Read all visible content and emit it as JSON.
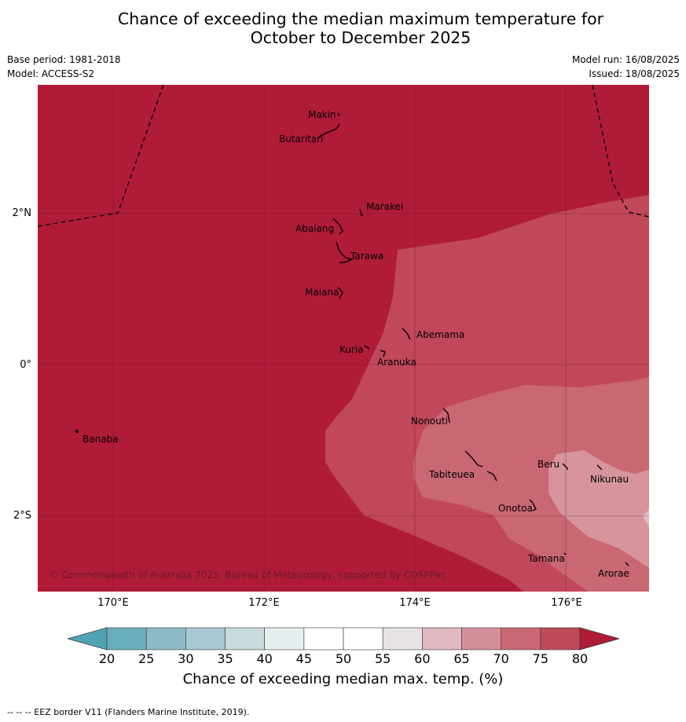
{
  "title": {
    "line1": "Chance of exceeding the median maximum temperature for",
    "line2": "October to December 2025"
  },
  "meta": {
    "base_period": "Base period: 1981-2018",
    "model": "Model: ACCESS-S2",
    "model_run": "Model run: 16/08/2025",
    "issued": "Issued: 18/08/2025"
  },
  "map": {
    "x_ticks": [
      "170°E",
      "172°E",
      "174°E",
      "176°E"
    ],
    "y_ticks": [
      "2°N",
      "0°",
      "2°S"
    ],
    "places": [
      "Makin",
      "Butaritari",
      "Marakei",
      "Abaiang",
      "Tarawa",
      "Maiana",
      "Abemama",
      "Kuria",
      "Aranuka",
      "Nonouti",
      "Banaba",
      "Beru",
      "Tabiteuea",
      "Nikunau",
      "Onotoa",
      "Tamana",
      "Arorae"
    ],
    "copyright": "© Commonwealth of Australia 2025, Bureau of Meteorology, supported by COSPPac"
  },
  "colorbar": {
    "ticks": [
      "20",
      "25",
      "30",
      "35",
      "40",
      "45",
      "50",
      "55",
      "60",
      "65",
      "70",
      "75",
      "80"
    ],
    "colors": [
      "#6aaebd",
      "#8cbac6",
      "#a9c8cf",
      "#c9dade",
      "#e7eef0",
      "#ffffff",
      "#ffffff",
      "#e8e4e5",
      "#e1b9c0",
      "#d48f99",
      "#c96975",
      "#bf4a58"
    ],
    "low_extend_color": "#4fa3b3",
    "high_extend_color": "#b01c38",
    "label": "Chance of exceeding median max. temp. (%)"
  },
  "footnote": "--  --  -- EEZ border V11 (Flanders Marine Institute, 2019)."
}
